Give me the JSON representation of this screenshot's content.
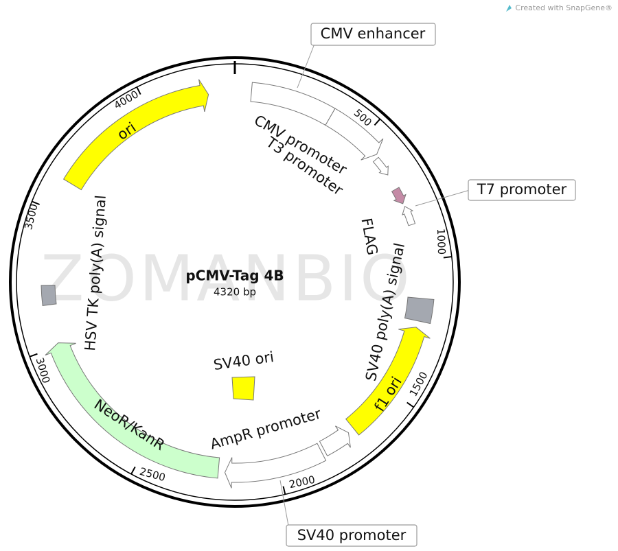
{
  "header": {
    "credit": "Created with SnapGene®"
  },
  "watermark": "ZOMANBIO",
  "plasmid": {
    "name": "pCMV-Tag 4B",
    "size": "4320 bp"
  },
  "ticks": [
    "500",
    "1000",
    "1500",
    "2000",
    "2500",
    "3000",
    "3500",
    "4000"
  ],
  "features": [
    {
      "label": "CMV enhancer"
    },
    {
      "label": "CMV promoter"
    },
    {
      "label": "T3 promoter"
    },
    {
      "label": "T7 promoter"
    },
    {
      "label": "FLAG"
    },
    {
      "label": "SV40 poly(A) signal"
    },
    {
      "label": "f1 ori"
    },
    {
      "label": "AmpR promoter"
    },
    {
      "label": "SV40 promoter"
    },
    {
      "label": "SV40 ori"
    },
    {
      "label": "NeoR/KanR"
    },
    {
      "label": "HSV TK poly(A) signal"
    },
    {
      "label": "ori"
    }
  ]
}
